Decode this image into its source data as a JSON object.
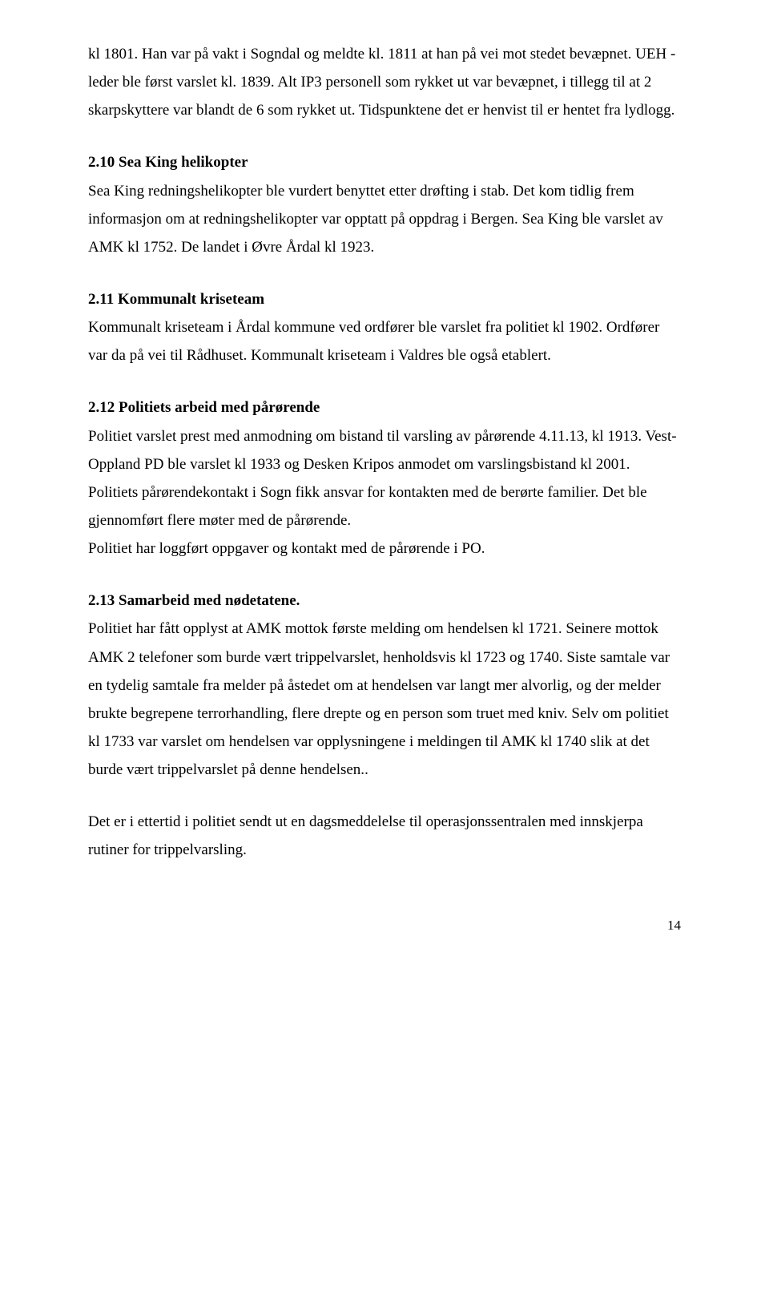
{
  "intro": {
    "p1": "kl 1801. Han var på vakt i Sogndal og meldte kl. 1811 at han på vei mot stedet bevæpnet. UEH -leder ble først varslet kl. 1839. Alt IP3 personell som rykket ut var bevæpnet, i tillegg til at 2 skarpskyttere var blandt de 6 som rykket ut. Tidspunktene det er henvist til er hentet fra lydlogg."
  },
  "s210": {
    "heading": "2.10   Sea King helikopter",
    "body": "Sea King redningshelikopter ble vurdert benyttet etter drøfting i stab. Det kom tidlig frem informasjon om at redningshelikopter var opptatt på oppdrag i Bergen. Sea King ble varslet av AMK kl 1752. De landet i Øvre Årdal kl 1923."
  },
  "s211": {
    "heading": "2.11  Kommunalt kriseteam",
    "body": "Kommunalt kriseteam i Årdal kommune ved ordfører ble varslet fra politiet kl 1902. Ordfører var da på vei til Rådhuset. Kommunalt kriseteam i Valdres ble også etablert."
  },
  "s212": {
    "heading": "2.12  Politiets arbeid med pårørende",
    "body": "Politiet varslet prest med anmodning om bistand til varsling av pårørende 4.11.13, kl 1913. Vest-Oppland PD ble varslet kl 1933 og Desken Kripos anmodet om varslingsbistand kl 2001. Politiets pårørendekontakt i Sogn fikk ansvar for kontakten med de berørte familier. Det ble gjennomført flere møter med de pårørende.\nPolitiet har loggført oppgaver og kontakt med de pårørende i PO."
  },
  "s213": {
    "heading": "2.13  Samarbeid med nødetatene.",
    "body": "Politiet har fått opplyst at AMK mottok første melding om hendelsen kl 1721. Seinere mottok AMK 2 telefoner som burde vært trippelvarslet, henholdsvis kl 1723 og 1740. Siste samtale var en tydelig samtale fra melder på åstedet om at hendelsen var langt mer alvorlig, og der melder brukte begrepene terrorhandling, flere drepte og en person som truet med kniv. Selv om politiet kl 1733 var varslet om hendelsen var opplysningene i meldingen til AMK kl 1740 slik at det burde vært trippelvarslet på denne hendelsen.",
    "tail": "Det er i ettertid i politiet sendt ut en dagsmeddelelse til operasjonssentralen med innskjerpa rutiner for trippelvarsling."
  },
  "page_number": "14"
}
